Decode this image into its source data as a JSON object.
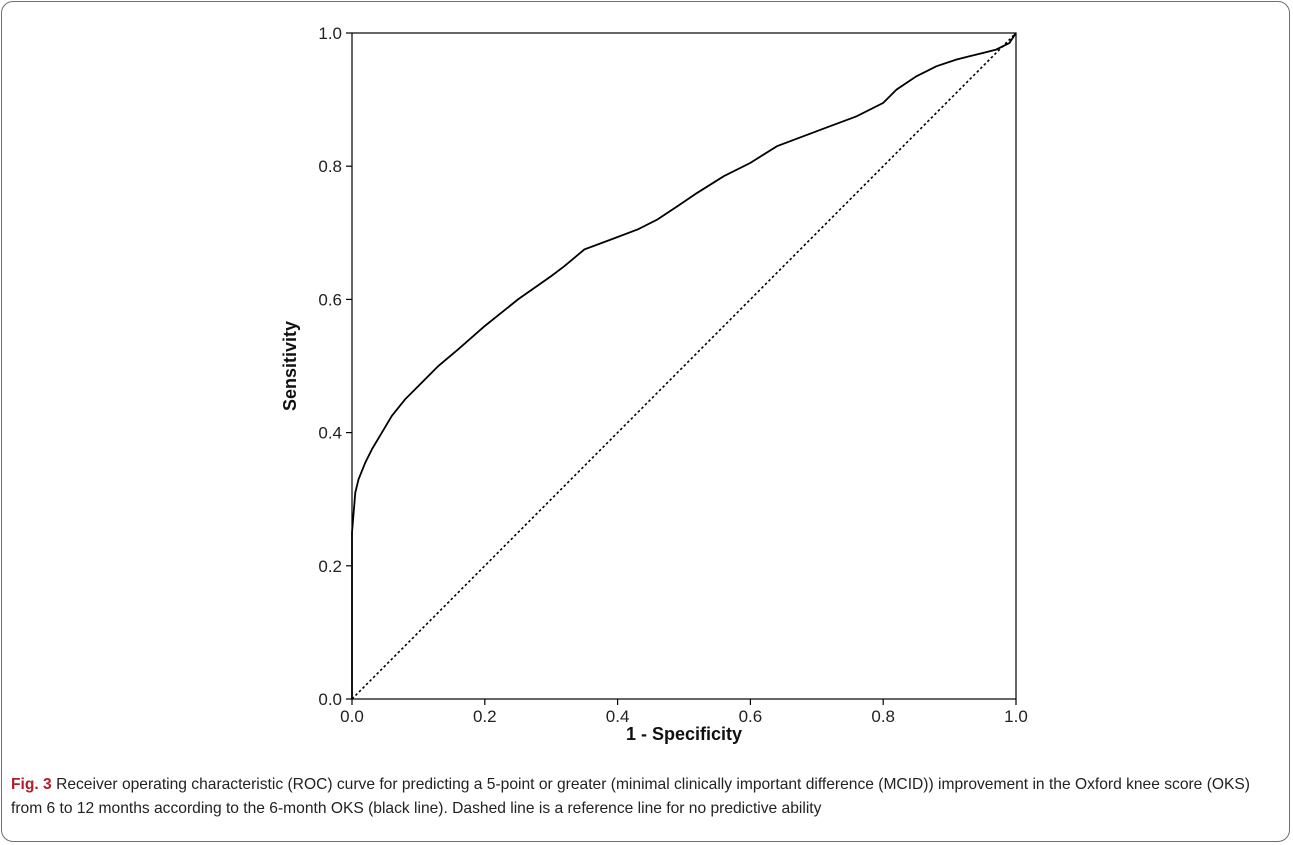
{
  "chart_data": {
    "type": "line",
    "title": "",
    "xlabel": "1 - Specificity",
    "ylabel": "Sensitivity",
    "xlim": [
      0,
      1
    ],
    "ylim": [
      0,
      1
    ],
    "xticks": [
      "0.0",
      "0.2",
      "0.4",
      "0.6",
      "0.8",
      "1.0"
    ],
    "yticks": [
      "0.0",
      "0.2",
      "0.4",
      "0.6",
      "0.8",
      "1.0"
    ],
    "grid": false,
    "legend": "none",
    "series": [
      {
        "style": "solid",
        "color": "#000000",
        "x": [
          0,
          0,
          0.005,
          0.01,
          0.02,
          0.03,
          0.045,
          0.06,
          0.08,
          0.1,
          0.13,
          0.16,
          0.2,
          0.25,
          0.3,
          0.32,
          0.35,
          0.39,
          0.43,
          0.46,
          0.49,
          0.52,
          0.56,
          0.6,
          0.64,
          0.68,
          0.72,
          0.76,
          0.8,
          0.82,
          0.85,
          0.88,
          0.91,
          0.93,
          0.95,
          0.97,
          0.99,
          1.0
        ],
        "y": [
          0,
          0.25,
          0.31,
          0.33,
          0.355,
          0.375,
          0.4,
          0.425,
          0.45,
          0.47,
          0.5,
          0.525,
          0.56,
          0.6,
          0.635,
          0.65,
          0.675,
          0.69,
          0.705,
          0.72,
          0.74,
          0.76,
          0.785,
          0.805,
          0.83,
          0.845,
          0.86,
          0.875,
          0.895,
          0.915,
          0.935,
          0.95,
          0.96,
          0.965,
          0.97,
          0.975,
          0.985,
          1.0
        ]
      },
      {
        "style": "dotted",
        "color": "#000000",
        "x": [
          0,
          1
        ],
        "y": [
          0,
          1
        ]
      }
    ]
  },
  "caption": {
    "label": "Fig. 3",
    "text": "Receiver operating characteristic (ROC) curve for predicting a 5-point or greater (minimal clinically important difference (MCID)) improvement in the Oxford knee score (OKS) from 6 to 12 months according to the 6-month OKS (black line). Dashed line is a reference line for no predictive ability"
  }
}
